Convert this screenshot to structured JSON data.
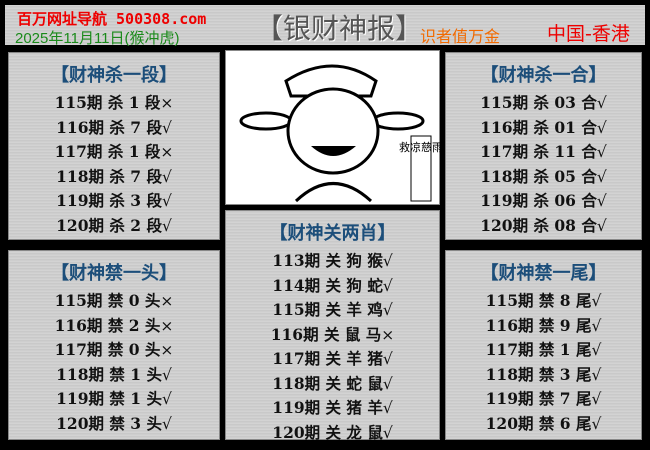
{
  "header": {
    "site": "百万网址导航 500308.com",
    "date": "2025年11月11日(猴冲虎)",
    "title": "【银财神报】",
    "slogan": "识者值万金",
    "region": "中国-香港"
  },
  "image": {
    "caption": "救凉慈雨",
    "icon": "god-of-wealth-illustration"
  },
  "panels": [
    {
      "title": "【财神杀一段】",
      "rows": [
        {
          "text": "115期 杀 1 段",
          "mark": "×"
        },
        {
          "text": "116期 杀 7 段",
          "mark": "√"
        },
        {
          "text": "117期 杀 1 段",
          "mark": "×"
        },
        {
          "text": "118期 杀 7 段",
          "mark": "√"
        },
        {
          "text": "119期 杀 3 段",
          "mark": "√"
        },
        {
          "text": "120期 杀 2 段",
          "mark": "√"
        }
      ]
    },
    {
      "title": "【财神禁一头】",
      "rows": [
        {
          "text": "115期 禁 0 头",
          "mark": "×"
        },
        {
          "text": "116期 禁 2 头",
          "mark": "×"
        },
        {
          "text": "117期 禁 0 头",
          "mark": "×"
        },
        {
          "text": "118期 禁 1 头",
          "mark": "√"
        },
        {
          "text": "119期 禁 1 头",
          "mark": "√"
        },
        {
          "text": "120期 禁 3 头",
          "mark": "√"
        }
      ]
    },
    {
      "title": "【财神关两肖】",
      "rows": [
        {
          "text": "113期 关 狗 猴",
          "mark": "√"
        },
        {
          "text": "114期 关 狗 蛇",
          "mark": "√"
        },
        {
          "text": "115期 关 羊 鸡",
          "mark": "√"
        },
        {
          "text": "116期 关 鼠 马",
          "mark": "×"
        },
        {
          "text": "117期 关 羊 猪",
          "mark": "√"
        },
        {
          "text": "118期 关 蛇 鼠",
          "mark": "√"
        },
        {
          "text": "119期 关 猪 羊",
          "mark": "√"
        },
        {
          "text": "120期 关 龙 鼠",
          "mark": "√"
        }
      ]
    },
    {
      "title": "【财神杀一合】",
      "rows": [
        {
          "text": "115期 杀 03 合",
          "mark": "√"
        },
        {
          "text": "116期 杀 01 合",
          "mark": "√"
        },
        {
          "text": "117期 杀 11 合",
          "mark": "√"
        },
        {
          "text": "118期 杀 05 合",
          "mark": "√"
        },
        {
          "text": "119期 杀 06 合",
          "mark": "√"
        },
        {
          "text": "120期 杀 08 合",
          "mark": "√"
        }
      ]
    },
    {
      "title": "【财神禁一尾】",
      "rows": [
        {
          "text": "115期 禁 8 尾",
          "mark": "√"
        },
        {
          "text": "116期 禁 9 尾",
          "mark": "√"
        },
        {
          "text": "117期 禁 1 尾",
          "mark": "√"
        },
        {
          "text": "118期 禁 3 尾",
          "mark": "√"
        },
        {
          "text": "119期 禁 7 尾",
          "mark": "√"
        },
        {
          "text": "120期 禁 6 尾",
          "mark": "√"
        }
      ]
    }
  ]
}
